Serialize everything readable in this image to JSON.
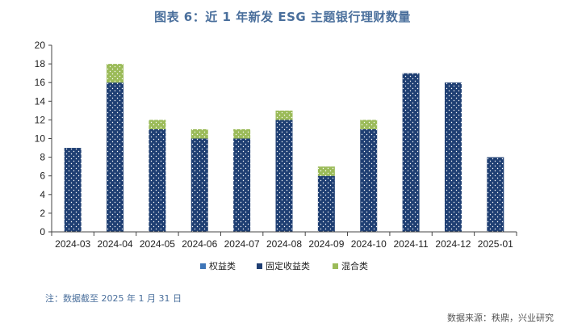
{
  "chart_data": {
    "type": "bar",
    "stacked": true,
    "title": "图表 6：近 1 年新发 ESG 主题银行理财数量",
    "xlabel": "",
    "ylabel": "",
    "ylim": [
      0,
      20
    ],
    "yticks": [
      "0",
      "2",
      "4",
      "6",
      "8",
      "10",
      "12",
      "14",
      "16",
      "18",
      "20"
    ],
    "categories": [
      "2024-03",
      "2024-04",
      "2024-05",
      "2024-06",
      "2024-07",
      "2024-08",
      "2024-09",
      "2024-10",
      "2024-11",
      "2024-12",
      "2025-01"
    ],
    "series": [
      {
        "name": "权益类",
        "color": "#3f76b8",
        "values": [
          0,
          0,
          0,
          0,
          0,
          0,
          0,
          0,
          0,
          0,
          0
        ]
      },
      {
        "name": "固定收益类",
        "color": "#1f3f73",
        "values": [
          9,
          16,
          11,
          10,
          10,
          12,
          6,
          11,
          17,
          16,
          8
        ]
      },
      {
        "name": "混合类",
        "color": "#9bbb59",
        "values": [
          0,
          2,
          1,
          1,
          1,
          1,
          1,
          1,
          0,
          0,
          0
        ]
      }
    ],
    "grid": false,
    "legend_position": "bottom"
  },
  "footer": {
    "note": "注：数据截至 2025 年 1 月 31 日",
    "source": "数据来源：秩鼎，兴业研究"
  }
}
